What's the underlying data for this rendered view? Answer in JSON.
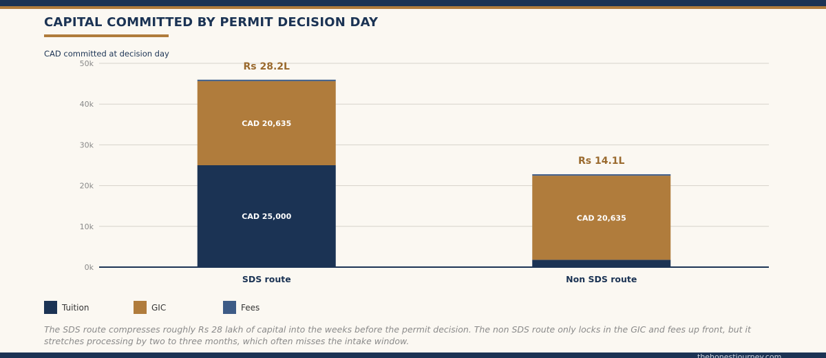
{
  "title": "CAPITAL COMMITTED BY PERMIT DECISION DAY",
  "caption": "The SDS route compresses roughly Rs 28 lakh of capital into the weeks before the permit decision. The non SDS route only locks in the GIC and fees up front, but it stretches processing by two to three months, which often misses the intake window.",
  "footer": {
    "site": "thehonestjourney.com"
  },
  "colors": {
    "navy": "#1b3354",
    "gold": "#b07c3c",
    "fees": "#3d5b86",
    "background": "#fbf8f2"
  },
  "chart_data": {
    "type": "bar",
    "stacked": true,
    "ylabel": "CAD committed at decision day",
    "xlabel": "",
    "ylim": [
      0,
      50000
    ],
    "yticks": [
      0,
      10000,
      20000,
      30000,
      40000,
      50000
    ],
    "ytick_labels": [
      "0k",
      "10k",
      "20k",
      "30k",
      "40k",
      "50k"
    ],
    "grid": true,
    "legend": "bottom-left",
    "categories": [
      "SDS route",
      "Non SDS route"
    ],
    "series": [
      {
        "name": "Tuition",
        "color": "#1b3354",
        "values": [
          25000,
          1800
        ],
        "labels": [
          "CAD 25,000",
          ""
        ]
      },
      {
        "name": "GIC",
        "color": "#b07c3c",
        "values": [
          20635,
          20635
        ],
        "labels": [
          "CAD 20,635",
          "CAD 20,635"
        ]
      },
      {
        "name": "Fees",
        "color": "#3d5b86",
        "values": [
          350,
          350
        ],
        "labels": [
          "",
          ""
        ]
      }
    ],
    "total_labels": [
      "Rs 28.2L",
      "Rs 14.1L"
    ]
  }
}
